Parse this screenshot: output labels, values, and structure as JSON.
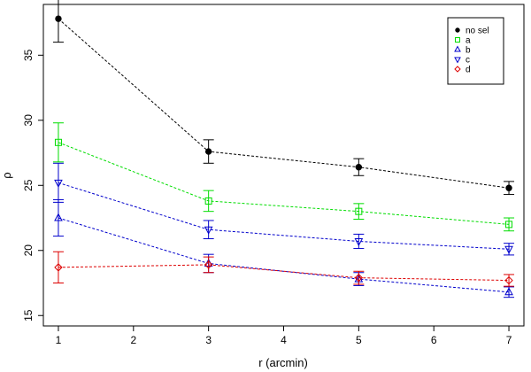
{
  "chart_data": {
    "type": "line",
    "title": "",
    "xlabel": "r (arcmin)",
    "ylabel": "ρ",
    "xlim": [
      0.8,
      7.2
    ],
    "ylim": [
      14.2,
      38.9
    ],
    "x": [
      1,
      3,
      5,
      7
    ],
    "xticks": [
      1,
      2,
      3,
      4,
      5,
      6,
      7
    ],
    "yticks": [
      15,
      20,
      25,
      30,
      35
    ],
    "grid": false,
    "legend_position": "top-right",
    "series": [
      {
        "name": "no sel",
        "color": "#000000",
        "marker": "filled-circle",
        "values": [
          37.8,
          27.6,
          26.4,
          24.8
        ],
        "error": [
          1.8,
          0.9,
          0.65,
          0.5
        ]
      },
      {
        "name": "a",
        "color": "#00dd00",
        "marker": "square",
        "values": [
          28.3,
          23.8,
          23.0,
          22.0
        ],
        "error": [
          1.5,
          0.8,
          0.6,
          0.5
        ]
      },
      {
        "name": "b",
        "color": "#0000cc",
        "marker": "triangle-up",
        "values": [
          22.5,
          19.0,
          17.8,
          16.8
        ],
        "error": [
          1.4,
          0.7,
          0.5,
          0.4
        ]
      },
      {
        "name": "c",
        "color": "#0000cc",
        "marker": "triangle-down",
        "values": [
          25.2,
          21.6,
          20.7,
          20.1
        ],
        "error": [
          1.5,
          0.7,
          0.55,
          0.45
        ]
      },
      {
        "name": "d",
        "color": "#dd0000",
        "marker": "diamond",
        "values": [
          18.7,
          18.9,
          17.9,
          17.7
        ],
        "error": [
          1.2,
          0.6,
          0.5,
          0.45
        ]
      }
    ]
  }
}
